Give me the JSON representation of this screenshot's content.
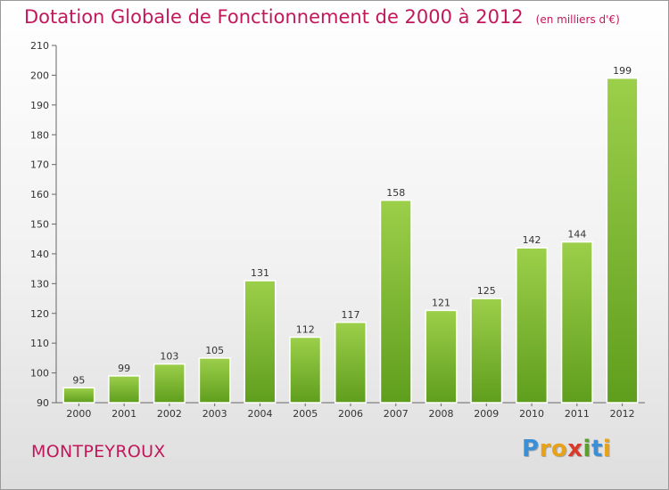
{
  "chart_data": {
    "type": "bar",
    "title": "Dotation Globale de Fonctionnement de 2000 à 2012",
    "subtitle": "(en milliers d'€)",
    "categories": [
      "2000",
      "2001",
      "2002",
      "2003",
      "2004",
      "2005",
      "2006",
      "2007",
      "2008",
      "2009",
      "2010",
      "2011",
      "2012"
    ],
    "values": [
      95,
      99,
      103,
      105,
      131,
      112,
      117,
      158,
      121,
      125,
      142,
      144,
      199
    ],
    "ylim": [
      90,
      210
    ],
    "yticks": [
      90,
      100,
      110,
      120,
      130,
      140,
      150,
      160,
      170,
      180,
      190,
      200,
      210
    ],
    "grid": false,
    "bar_color_top": "#9ccf4a",
    "bar_color_bottom": "#5f9e1d"
  },
  "footer": {
    "commune": "MONTPEYROUX",
    "logo_letters": [
      "P",
      "r",
      "o",
      "x",
      "i",
      "t",
      "i"
    ],
    "logo_colors": [
      "#3a8fd6",
      "#e8a21a",
      "#e8a21a",
      "#d93a2b",
      "#5aa02c",
      "#3a8fd6",
      "#e8a21a"
    ]
  },
  "colors": {
    "accent": "#c2185b"
  }
}
